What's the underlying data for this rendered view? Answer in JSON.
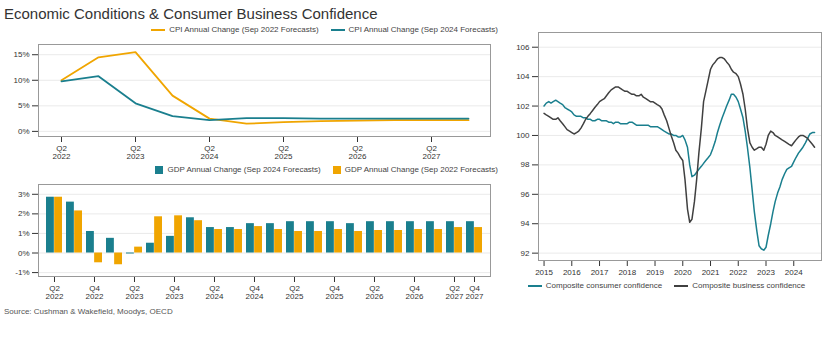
{
  "title": "Economic Conditions & Consumer Business Confidence",
  "annotations": [
    "Source: Cushman & Wakefield, Moodys, OECD"
  ],
  "chart_data": [
    {
      "type": "line",
      "categories": [
        "Q2\n2022",
        null,
        "Q2\n2023",
        null,
        "Q2\n2024",
        null,
        "Q2\n2025",
        null,
        "Q2\n2026",
        null,
        "Q2\n2027",
        null
      ],
      "series": [
        {
          "name": "CPI Annual Change (Sep 2022 Forecasts)",
          "color": "#f0a500",
          "values": [
            10.0,
            14.5,
            15.5,
            7.0,
            2.5,
            1.5,
            1.8,
            2.0,
            2.1,
            2.2,
            2.2,
            2.2
          ]
        },
        {
          "name": "CPI Annual Change (Sep 2024 Forecasts)",
          "color": "#1a7f8e",
          "values": [
            9.8,
            10.8,
            5.5,
            3.0,
            2.2,
            2.6,
            2.6,
            2.5,
            2.5,
            2.5,
            2.5,
            2.5
          ]
        }
      ],
      "ylim": [
        -1,
        17
      ],
      "yticks": [
        {
          "value": 0,
          "label": "0%"
        },
        {
          "value": 5,
          "label": "5%"
        },
        {
          "value": 10,
          "label": "10%"
        },
        {
          "value": 15,
          "label": "15%"
        }
      ],
      "grid": true,
      "legend": "upper right"
    },
    {
      "type": "bar",
      "categories": [
        "Q2\n2022",
        null,
        "Q4\n2022",
        null,
        "Q2\n2023",
        null,
        "Q4\n2023",
        null,
        "Q2\n2024",
        null,
        "Q4\n2024",
        null,
        "Q2\n2025",
        null,
        "Q4\n2025",
        null,
        "Q2\n2026",
        null,
        "Q4\n2026",
        null,
        "Q2\n2027",
        "Q4\n2027"
      ],
      "series": [
        {
          "name": "GDP Annual Change (Sep 2024 Forecasts)",
          "color": "#1a7f8e",
          "values": [
            2.85,
            2.6,
            1.1,
            0.75,
            -0.05,
            0.5,
            0.85,
            1.8,
            1.3,
            1.3,
            1.5,
            1.5,
            1.6,
            1.6,
            1.6,
            1.5,
            1.6,
            1.6,
            1.6,
            1.6,
            1.6,
            1.6
          ]
        },
        {
          "name": "GDP Annual Change (Sep 2022 Forecasts)",
          "color": "#f0a500",
          "values": [
            2.85,
            2.15,
            -0.5,
            -0.6,
            0.3,
            1.85,
            1.9,
            1.65,
            1.2,
            1.2,
            1.35,
            1.2,
            1.1,
            1.1,
            1.2,
            1.1,
            1.15,
            1.15,
            1.2,
            1.2,
            1.3,
            1.3
          ]
        }
      ],
      "ylim": [
        -1.2,
        3.5
      ],
      "yticks": [
        {
          "value": -1,
          "label": "-1%"
        },
        {
          "value": 0,
          "label": "0%"
        },
        {
          "value": 1,
          "label": "1%"
        },
        {
          "value": 2,
          "label": "2%"
        },
        {
          "value": 3,
          "label": "3%"
        }
      ],
      "grid": true,
      "legend": "upper right"
    },
    {
      "type": "line",
      "x": [
        2015.0,
        2015.08,
        2015.17,
        2015.25,
        2015.33,
        2015.42,
        2015.5,
        2015.58,
        2015.67,
        2015.75,
        2015.83,
        2015.92,
        2016.0,
        2016.08,
        2016.17,
        2016.25,
        2016.33,
        2016.42,
        2016.5,
        2016.58,
        2016.67,
        2016.75,
        2016.83,
        2016.92,
        2017.0,
        2017.08,
        2017.17,
        2017.25,
        2017.33,
        2017.42,
        2017.5,
        2017.58,
        2017.67,
        2017.75,
        2017.83,
        2017.92,
        2018.0,
        2018.08,
        2018.17,
        2018.25,
        2018.33,
        2018.42,
        2018.5,
        2018.58,
        2018.67,
        2018.75,
        2018.83,
        2018.92,
        2019.0,
        2019.08,
        2019.17,
        2019.25,
        2019.33,
        2019.42,
        2019.5,
        2019.58,
        2019.67,
        2019.75,
        2019.83,
        2019.92,
        2020.0,
        2020.08,
        2020.17,
        2020.25,
        2020.33,
        2020.42,
        2020.5,
        2020.58,
        2020.67,
        2020.75,
        2020.83,
        2020.92,
        2021.0,
        2021.08,
        2021.17,
        2021.25,
        2021.33,
        2021.42,
        2021.5,
        2021.58,
        2021.67,
        2021.75,
        2021.83,
        2021.92,
        2022.0,
        2022.08,
        2022.17,
        2022.25,
        2022.33,
        2022.42,
        2022.5,
        2022.58,
        2022.67,
        2022.75,
        2022.83,
        2022.92,
        2023.0,
        2023.08,
        2023.17,
        2023.25,
        2023.33,
        2023.42,
        2023.5,
        2023.58,
        2023.67,
        2023.75,
        2023.83,
        2023.92,
        2024.0,
        2024.08,
        2024.17,
        2024.25,
        2024.33,
        2024.42,
        2024.5,
        2024.58,
        2024.67,
        2024.75
      ],
      "series": [
        {
          "name": "Composite consumer confidence",
          "color": "#1a7f8e",
          "values": [
            102.0,
            102.2,
            102.3,
            102.2,
            102.3,
            102.4,
            102.3,
            102.2,
            102.1,
            101.9,
            101.8,
            101.7,
            101.6,
            101.4,
            101.3,
            101.3,
            101.3,
            101.2,
            101.2,
            101.1,
            101.1,
            101.0,
            101.0,
            101.1,
            101.1,
            101.0,
            101.0,
            101.0,
            100.9,
            100.9,
            100.8,
            100.9,
            100.9,
            100.8,
            100.8,
            100.8,
            100.8,
            100.9,
            100.9,
            100.8,
            100.7,
            100.7,
            100.7,
            100.7,
            100.7,
            100.7,
            100.6,
            100.6,
            100.6,
            100.6,
            100.5,
            100.4,
            100.3,
            100.2,
            100.1,
            100.1,
            100.0,
            100.0,
            99.9,
            99.9,
            100.0,
            99.7,
            99.2,
            98.0,
            97.2,
            97.3,
            97.5,
            97.7,
            97.9,
            98.1,
            98.3,
            98.5,
            98.7,
            99.1,
            99.6,
            100.2,
            100.7,
            101.2,
            101.6,
            102.0,
            102.4,
            102.8,
            102.8,
            102.6,
            102.3,
            101.8,
            101.2,
            100.3,
            99.2,
            97.8,
            96.3,
            94.8,
            93.5,
            92.5,
            92.3,
            92.2,
            92.4,
            93.2,
            94.0,
            94.8,
            95.5,
            96.1,
            96.5,
            97.0,
            97.4,
            97.7,
            97.8,
            97.9,
            98.2,
            98.5,
            98.8,
            99.0,
            99.2,
            99.5,
            99.8,
            100.1,
            100.2,
            100.2
          ]
        },
        {
          "name": "Composite business confidence",
          "color": "#404040",
          "values": [
            101.5,
            101.4,
            101.3,
            101.2,
            101.1,
            101.1,
            101.2,
            101.0,
            100.8,
            100.6,
            100.4,
            100.3,
            100.2,
            100.1,
            100.2,
            100.3,
            100.5,
            100.8,
            101.1,
            101.3,
            101.5,
            101.7,
            101.9,
            102.1,
            102.3,
            102.4,
            102.5,
            102.7,
            102.9,
            103.1,
            103.2,
            103.3,
            103.3,
            103.2,
            103.1,
            103.0,
            103.0,
            102.9,
            102.8,
            102.8,
            102.7,
            102.7,
            102.8,
            102.6,
            102.5,
            102.4,
            102.3,
            102.3,
            102.2,
            102.1,
            102.0,
            101.8,
            101.4,
            101.0,
            100.5,
            100.0,
            99.5,
            99.0,
            98.8,
            98.5,
            98.3,
            97.0,
            95.0,
            94.1,
            94.3,
            95.5,
            97.0,
            98.8,
            100.5,
            102.3,
            103.0,
            103.8,
            104.5,
            104.8,
            105.0,
            105.2,
            105.3,
            105.3,
            105.2,
            105.0,
            104.8,
            104.5,
            104.3,
            104.2,
            104.0,
            103.5,
            102.8,
            101.8,
            100.5,
            99.5,
            99.2,
            99.0,
            99.1,
            99.2,
            99.2,
            99.0,
            99.4,
            100.0,
            100.3,
            100.2,
            100.0,
            99.9,
            99.8,
            99.7,
            99.6,
            99.5,
            99.4,
            99.3,
            99.5,
            99.7,
            99.9,
            100.0,
            100.0,
            99.9,
            99.8,
            99.6,
            99.4,
            99.2
          ]
        }
      ],
      "xlim": [
        2014.8,
        2025.0
      ],
      "xticks": [
        2015,
        2016,
        2017,
        2018,
        2019,
        2020,
        2021,
        2022,
        2023,
        2024
      ],
      "ylim": [
        91.5,
        107
      ],
      "yticks": [
        92,
        94,
        96,
        98,
        100,
        102,
        104,
        106
      ],
      "grid": true,
      "legend": "lower center"
    }
  ]
}
